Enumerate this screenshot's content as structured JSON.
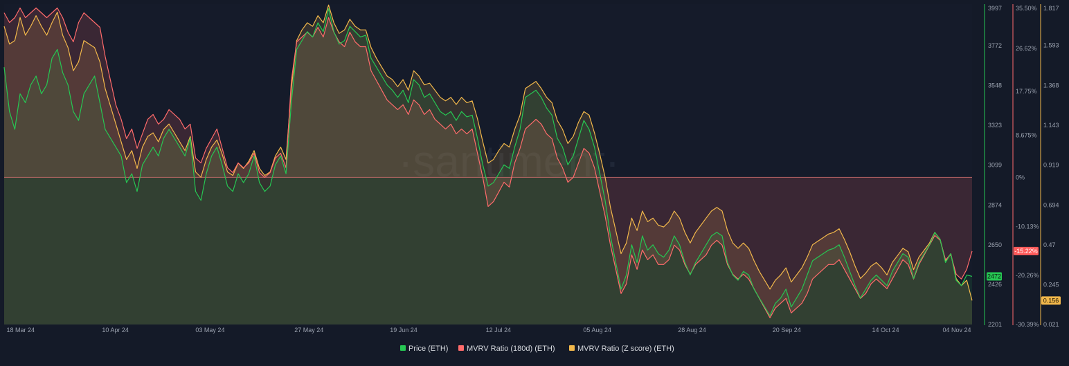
{
  "chart_data": {
    "type": "line",
    "watermark": "·santiment·",
    "x_ticks": [
      "18 Mar 24",
      "10 Apr 24",
      "03 May 24",
      "27 May 24",
      "19 Jun 24",
      "12 Jul 24",
      "05 Aug 24",
      "28 Aug 24",
      "20 Sep 24",
      "14 Oct 24",
      "04 Nov 24"
    ],
    "x_range": [
      "2024-03-14",
      "2024-11-04"
    ],
    "axes": {
      "price": {
        "min": 2201,
        "max": 3997,
        "ticks": [
          "3997",
          "3772",
          "3548",
          "3323",
          "3099",
          "2874",
          "2650",
          "2426",
          "2201"
        ],
        "color": "#26c753"
      },
      "mvrv180": {
        "min": -30.39,
        "max": 35.5,
        "ticks": [
          "35.50%",
          "26.62%",
          "17.75%",
          "8.675%",
          "0%",
          "-10.13%",
          "-20.26%",
          "-30.39%"
        ],
        "color": "#ff6b6b"
      },
      "zscore": {
        "min": 0.021,
        "max": 1.817,
        "ticks": [
          "1.817",
          "1.593",
          "1.368",
          "1.143",
          "0.919",
          "0.694",
          "0.47",
          "0.245",
          "0.021"
        ],
        "color": "#f2b84b"
      }
    },
    "badges": {
      "price": {
        "label": "2472",
        "color": "#26c753",
        "text_color": "#0b1a10"
      },
      "mvrv180": {
        "label": "-15.22%",
        "color": "#ff5a5a",
        "text_color": "#ffffff"
      },
      "zscore": {
        "label": "0.156",
        "color": "#f2b84b",
        "text_color": "#1a1405"
      }
    },
    "series": [
      {
        "key": "price",
        "name": "Price (ETH)",
        "color": "#26c753",
        "values": [
          3650,
          3400,
          3300,
          3500,
          3450,
          3550,
          3600,
          3500,
          3550,
          3700,
          3750,
          3620,
          3550,
          3400,
          3350,
          3500,
          3550,
          3600,
          3450,
          3300,
          3250,
          3200,
          3150,
          3000,
          3050,
          2950,
          3100,
          3150,
          3200,
          3150,
          3250,
          3300,
          3250,
          3200,
          3150,
          3250,
          2950,
          2900,
          3050,
          3150,
          3200,
          3100,
          2980,
          2950,
          3050,
          3000,
          3050,
          3150,
          3000,
          2950,
          2980,
          3100,
          3150,
          3050,
          3450,
          3750,
          3800,
          3850,
          3820,
          3900,
          3850,
          3980,
          3850,
          3780,
          3800,
          3880,
          3850,
          3820,
          3830,
          3700,
          3650,
          3600,
          3550,
          3520,
          3480,
          3520,
          3450,
          3580,
          3550,
          3480,
          3500,
          3450,
          3400,
          3380,
          3400,
          3350,
          3400,
          3370,
          3380,
          3250,
          3100,
          2980,
          3000,
          3050,
          3100,
          3080,
          3200,
          3300,
          3480,
          3500,
          3520,
          3480,
          3420,
          3380,
          3250,
          3200,
          3100,
          3150,
          3250,
          3350,
          3300,
          3200,
          3050,
          2900,
          2700,
          2550,
          2400,
          2480,
          2650,
          2550,
          2700,
          2620,
          2650,
          2600,
          2580,
          2620,
          2700,
          2650,
          2550,
          2480,
          2550,
          2600,
          2650,
          2700,
          2720,
          2700,
          2550,
          2480,
          2450,
          2500,
          2480,
          2400,
          2350,
          2300,
          2250,
          2320,
          2350,
          2400,
          2300,
          2350,
          2400,
          2480,
          2560,
          2580,
          2600,
          2620,
          2630,
          2650,
          2580,
          2500,
          2420,
          2350,
          2400,
          2450,
          2480,
          2450,
          2420,
          2500,
          2550,
          2600,
          2580,
          2460,
          2550,
          2600,
          2650,
          2720,
          2680,
          2550,
          2600,
          2450,
          2420,
          2480,
          2472
        ]
      },
      {
        "key": "mvrv180",
        "name": "MVRV Ratio (180d) (ETH)",
        "color": "#ff6b6b",
        "values": [
          34,
          32,
          33,
          35,
          33,
          34,
          35,
          34,
          33,
          34,
          35,
          33,
          30,
          28,
          32,
          34,
          33,
          32,
          31,
          25,
          20,
          15,
          12,
          8,
          10,
          6,
          9,
          12,
          13,
          11,
          12,
          14,
          13,
          12,
          10,
          11,
          4,
          3,
          6,
          8,
          10,
          6,
          2,
          1,
          3,
          2,
          3,
          5,
          1,
          0,
          1,
          4,
          5,
          2,
          20,
          28,
          29,
          30,
          29,
          31,
          29,
          33,
          30,
          28,
          27,
          30,
          28,
          27,
          27,
          22,
          20,
          18,
          16,
          15,
          14,
          15,
          13,
          16,
          15,
          13,
          14,
          12,
          11,
          10,
          11,
          9,
          10,
          9,
          10,
          5,
          0,
          -6,
          -5,
          -3,
          -1,
          -2,
          3,
          6,
          10,
          11,
          12,
          11,
          9,
          8,
          4,
          2,
          -1,
          0,
          3,
          6,
          5,
          2,
          -3,
          -8,
          -14,
          -19,
          -24,
          -22,
          -16,
          -19,
          -15,
          -17,
          -16,
          -18,
          -18,
          -17,
          -14,
          -15,
          -18,
          -20,
          -18,
          -17,
          -16,
          -14,
          -13,
          -14,
          -18,
          -20,
          -21,
          -20,
          -21,
          -23,
          -25,
          -27,
          -29,
          -27,
          -26,
          -25,
          -28,
          -27,
          -26,
          -24,
          -21,
          -20,
          -19,
          -18,
          -18,
          -17,
          -19,
          -21,
          -23,
          -25,
          -24,
          -22,
          -21,
          -22,
          -23,
          -21,
          -19,
          -17,
          -18,
          -21,
          -18,
          -16,
          -14,
          -12,
          -13,
          -17,
          -16,
          -20,
          -21,
          -19,
          -15.22
        ]
      },
      {
        "key": "zscore",
        "name": "MVRV Ratio (Z score) (ETH)",
        "color": "#f2b84b",
        "values": [
          1.7,
          1.6,
          1.62,
          1.75,
          1.65,
          1.7,
          1.76,
          1.7,
          1.65,
          1.72,
          1.78,
          1.65,
          1.58,
          1.45,
          1.5,
          1.62,
          1.6,
          1.58,
          1.5,
          1.35,
          1.25,
          1.15,
          1.05,
          0.95,
          1.0,
          0.9,
          1.02,
          1.08,
          1.1,
          1.05,
          1.12,
          1.15,
          1.1,
          1.05,
          1.0,
          1.08,
          0.88,
          0.85,
          0.95,
          1.02,
          1.06,
          0.98,
          0.88,
          0.86,
          0.93,
          0.9,
          0.94,
          1.0,
          0.9,
          0.86,
          0.88,
          0.97,
          1.02,
          0.95,
          1.35,
          1.62,
          1.68,
          1.72,
          1.7,
          1.76,
          1.72,
          1.82,
          1.72,
          1.66,
          1.68,
          1.74,
          1.7,
          1.68,
          1.68,
          1.58,
          1.52,
          1.47,
          1.42,
          1.4,
          1.36,
          1.4,
          1.34,
          1.45,
          1.42,
          1.37,
          1.38,
          1.34,
          1.3,
          1.28,
          1.3,
          1.26,
          1.3,
          1.27,
          1.28,
          1.18,
          1.05,
          0.93,
          0.95,
          1.0,
          1.04,
          1.02,
          1.12,
          1.2,
          1.35,
          1.37,
          1.39,
          1.35,
          1.3,
          1.27,
          1.17,
          1.12,
          1.04,
          1.08,
          1.16,
          1.22,
          1.2,
          1.1,
          0.98,
          0.85,
          0.68,
          0.55,
          0.42,
          0.48,
          0.62,
          0.55,
          0.66,
          0.6,
          0.62,
          0.58,
          0.57,
          0.6,
          0.66,
          0.62,
          0.54,
          0.48,
          0.54,
          0.58,
          0.62,
          0.66,
          0.68,
          0.66,
          0.55,
          0.48,
          0.45,
          0.48,
          0.45,
          0.38,
          0.32,
          0.27,
          0.22,
          0.27,
          0.3,
          0.34,
          0.26,
          0.3,
          0.34,
          0.4,
          0.47,
          0.49,
          0.51,
          0.53,
          0.54,
          0.56,
          0.5,
          0.43,
          0.35,
          0.28,
          0.31,
          0.35,
          0.37,
          0.34,
          0.3,
          0.37,
          0.41,
          0.45,
          0.43,
          0.33,
          0.4,
          0.44,
          0.48,
          0.54,
          0.5,
          0.38,
          0.42,
          0.28,
          0.24,
          0.27,
          0.156
        ]
      }
    ]
  }
}
